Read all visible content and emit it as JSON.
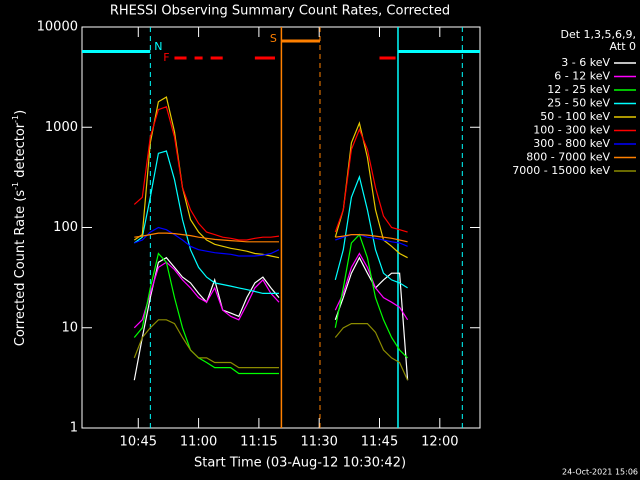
{
  "chart_data": {
    "type": "line",
    "title": "RHESSI Observing Summary Count Rates, Corrected",
    "xlabel": "Start Time (03-Aug-12 10:30:42)",
    "ylabel": [
      "Corrected Count Rate (s",
      "-1",
      " detector",
      "-1",
      ")"
    ],
    "legend_header": [
      "Det 1,3,5,6,9,",
      "Att 0"
    ],
    "footer": "24-Oct-2021 15:06",
    "log_y": true,
    "xlim": [
      631,
      730
    ],
    "ylim": [
      1,
      10000
    ],
    "yticks": [
      1,
      10,
      100,
      1000,
      10000
    ],
    "xticks": [
      {
        "value": 645,
        "label": "10:45"
      },
      {
        "value": 660,
        "label": "11:00"
      },
      {
        "value": 675,
        "label": "11:15"
      },
      {
        "value": 690,
        "label": "11:30"
      },
      {
        "value": 705,
        "label": "11:45"
      },
      {
        "value": 720,
        "label": "12:00"
      }
    ],
    "x": [
      644,
      646,
      648,
      650,
      652,
      654,
      656,
      658,
      660,
      662,
      664,
      666,
      668,
      670,
      672,
      674,
      676,
      678,
      680,
      682,
      694,
      696,
      698,
      700,
      702,
      704,
      706,
      708,
      710,
      712
    ],
    "series": [
      {
        "name": "3 - 6 keV",
        "color": "#ffffff",
        "values": [
          3,
          8,
          20,
          45,
          50,
          40,
          32,
          28,
          22,
          18,
          30,
          15,
          14,
          13,
          20,
          28,
          32,
          25,
          20,
          null,
          12,
          20,
          35,
          50,
          35,
          25,
          30,
          35,
          35,
          3
        ]
      },
      {
        "name": "6 - 12 keV",
        "color": "#ff00ff",
        "values": [
          10,
          12,
          22,
          40,
          45,
          38,
          30,
          25,
          20,
          18,
          25,
          15,
          13,
          12,
          17,
          25,
          30,
          22,
          18,
          null,
          15,
          22,
          40,
          55,
          40,
          25,
          20,
          18,
          16,
          12
        ]
      },
      {
        "name": "12 - 25 keV",
        "color": "#00ff00",
        "values": [
          8,
          10,
          25,
          55,
          45,
          20,
          10,
          6,
          5,
          4.5,
          4,
          4,
          4,
          3.5,
          3.5,
          3.5,
          3.5,
          3.5,
          3.5,
          null,
          10,
          25,
          70,
          85,
          50,
          20,
          12,
          8,
          6,
          5
        ]
      },
      {
        "name": "25 - 50 keV",
        "color": "#00ffff",
        "values": [
          70,
          80,
          200,
          550,
          580,
          300,
          120,
          60,
          40,
          32,
          28,
          27,
          26,
          25,
          24,
          23,
          22,
          22,
          22,
          null,
          30,
          60,
          200,
          320,
          150,
          60,
          35,
          30,
          28,
          25
        ]
      },
      {
        "name": "50 - 100 keV",
        "color": "#e6c800",
        "values": [
          75,
          85,
          700,
          1800,
          2000,
          900,
          250,
          120,
          90,
          75,
          68,
          65,
          62,
          60,
          58,
          55,
          54,
          52,
          50,
          null,
          80,
          150,
          700,
          1100,
          500,
          150,
          75,
          65,
          55,
          50
        ]
      },
      {
        "name": "100 - 300 keV",
        "color": "#ff0000",
        "values": [
          170,
          200,
          800,
          1500,
          1600,
          800,
          250,
          150,
          110,
          90,
          85,
          80,
          78,
          75,
          75,
          78,
          80,
          80,
          82,
          null,
          90,
          150,
          600,
          950,
          600,
          250,
          130,
          100,
          95,
          90
        ]
      },
      {
        "name": "300 - 800 keV",
        "color": "#0000ff",
        "values": [
          70,
          75,
          90,
          100,
          95,
          85,
          75,
          65,
          60,
          58,
          56,
          55,
          54,
          52,
          52,
          52,
          53,
          55,
          60,
          null,
          75,
          80,
          85,
          85,
          80,
          78,
          75,
          72,
          70,
          65
        ]
      },
      {
        "name": "800 - 7000 keV",
        "color": "#ff8000",
        "values": [
          80,
          82,
          85,
          88,
          88,
          87,
          85,
          83,
          80,
          78,
          76,
          75,
          74,
          73,
          72,
          72,
          72,
          72,
          72,
          null,
          80,
          82,
          85,
          85,
          84,
          82,
          80,
          78,
          75,
          72
        ]
      },
      {
        "name": "7000 - 15000 keV",
        "color": "#8c8c00",
        "values": [
          5,
          8,
          10,
          12,
          12,
          11,
          8,
          6,
          5,
          5,
          4.5,
          4.5,
          4.5,
          4,
          4,
          4,
          4,
          4,
          4,
          null,
          8,
          10,
          11,
          11,
          11,
          9,
          6,
          5,
          4.5,
          3
        ]
      }
    ],
    "flags": [
      {
        "label": "N",
        "color": "#00ffff",
        "solid": [
          709.6
        ],
        "dashed": [
          648,
          725.6
        ]
      },
      {
        "label": "F",
        "color": "#ff0000",
        "intervals": [
          [
            654,
            657
          ],
          [
            659,
            661
          ],
          [
            663,
            666
          ],
          [
            674,
            679
          ],
          [
            705,
            709
          ]
        ]
      },
      {
        "label": "S",
        "color": "#ff8000",
        "solid": [
          680.6
        ],
        "dashed": [
          690.2
        ]
      }
    ]
  }
}
